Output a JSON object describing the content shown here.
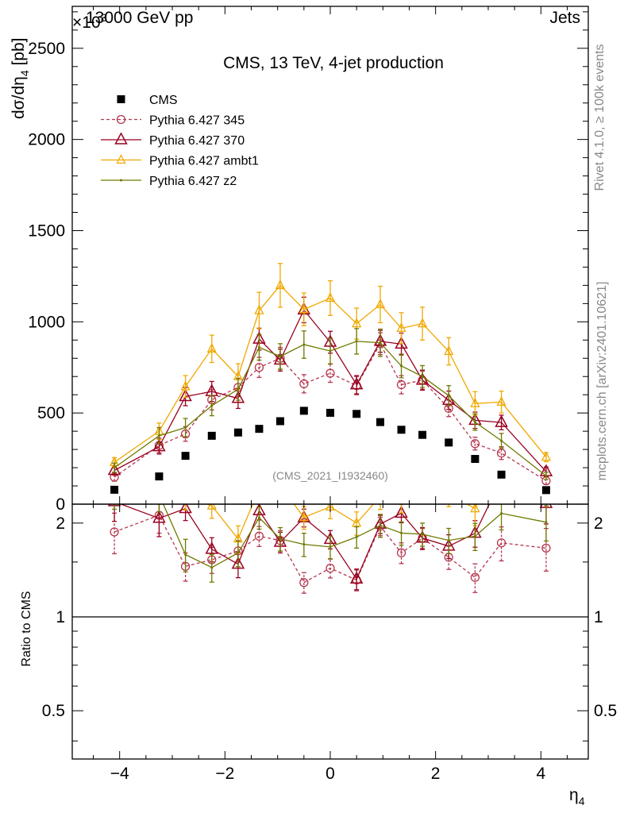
{
  "header": {
    "left": "13000 GeV pp",
    "right": "Jets",
    "exponent": "×10",
    "exponent_power": "3"
  },
  "side_text": {
    "rivet": "Rivet 4.1.0, ≥ 100k events",
    "mcplots": "mcplots.cern.ch [arXiv:2401.10621]"
  },
  "chart_data": {
    "type": "scatter",
    "title": "CMS, 13 TeV, 4-jet production",
    "watermark": "(CMS_2021_I1932460)",
    "xlabel": "η",
    "xlabel_sub": "4",
    "ylabel": "dσ/dη",
    "ylabel_sub": "4",
    "ylabel_unit": " [pb]",
    "ratio_ylabel": "Ratio to CMS",
    "xlim": [
      -4.9,
      4.9
    ],
    "ylim": [
      0,
      2730
    ],
    "y_scale_factor": 1000,
    "ratio_ylim": [
      0.35,
      2.3
    ],
    "x_ticks": [
      -4,
      -2,
      0,
      2,
      4
    ],
    "x_tick_labels": [
      "−4",
      "−2",
      "0",
      "2",
      "4"
    ],
    "y_ticks": [
      0,
      500,
      1000,
      1500,
      2000,
      2500
    ],
    "y_tick_labels": [
      "0",
      "500",
      "1000",
      "1500",
      "2000",
      "2500"
    ],
    "ratio_ticks": [
      0.5,
      1,
      2
    ],
    "ratio_tick_labels": [
      "0.5",
      "1",
      "2"
    ],
    "x": [
      -4.1,
      -3.25,
      -2.75,
      -2.25,
      -1.75,
      -1.35,
      -0.95,
      -0.5,
      0,
      0.5,
      0.95,
      1.35,
      1.75,
      2.25,
      2.75,
      3.25,
      4.1
    ],
    "series": [
      {
        "name": "CMS",
        "color": "#000000",
        "style": "data",
        "values": [
          79,
          152,
          265,
          375,
          393,
          413,
          455,
          512,
          501,
          495,
          450,
          408,
          380,
          338,
          248,
          162,
          77
        ]
      },
      {
        "name": "Pythia 6.427 345",
        "color": "#b5374e",
        "style": "dashed-circle",
        "values": [
          148,
          322,
          385,
          572,
          640,
          750,
          800,
          660,
          718,
          650,
          880,
          655,
          680,
          525,
          332,
          280,
          128
        ],
        "errors": [
          22,
          40,
          40,
          55,
          50,
          55,
          60,
          50,
          50,
          50,
          60,
          50,
          50,
          45,
          35,
          35,
          20
        ]
      },
      {
        "name": "Pythia 6.427 370",
        "color": "#99001f",
        "style": "solid-triangle",
        "values": [
          185,
          315,
          590,
          618,
          580,
          905,
          790,
          1065,
          888,
          655,
          893,
          878,
          680,
          570,
          460,
          448,
          178
        ],
        "errors": [
          25,
          40,
          50,
          55,
          55,
          60,
          60,
          70,
          60,
          50,
          60,
          60,
          55,
          50,
          45,
          40,
          25
        ]
      },
      {
        "name": "Pythia 6.427 ambt1",
        "color": "#f0a800",
        "style": "solid-triangle-small",
        "values": [
          230,
          400,
          645,
          852,
          700,
          1062,
          1200,
          1068,
          1130,
          990,
          1095,
          965,
          990,
          838,
          552,
          560,
          258
        ],
        "errors": [
          25,
          45,
          60,
          75,
          70,
          100,
          120,
          90,
          95,
          85,
          100,
          85,
          90,
          75,
          65,
          60,
          25
        ]
      },
      {
        "name": "Pythia 6.427 z2",
        "color": "#6f7a00",
        "style": "solid-dot",
        "values": [
          200,
          375,
          420,
          540,
          630,
          860,
          810,
          875,
          840,
          893,
          885,
          758,
          700,
          595,
          450,
          348,
          155
        ],
        "errors": [
          25,
          45,
          50,
          55,
          60,
          70,
          70,
          75,
          70,
          70,
          75,
          65,
          60,
          55,
          45,
          40,
          20
        ]
      }
    ]
  }
}
